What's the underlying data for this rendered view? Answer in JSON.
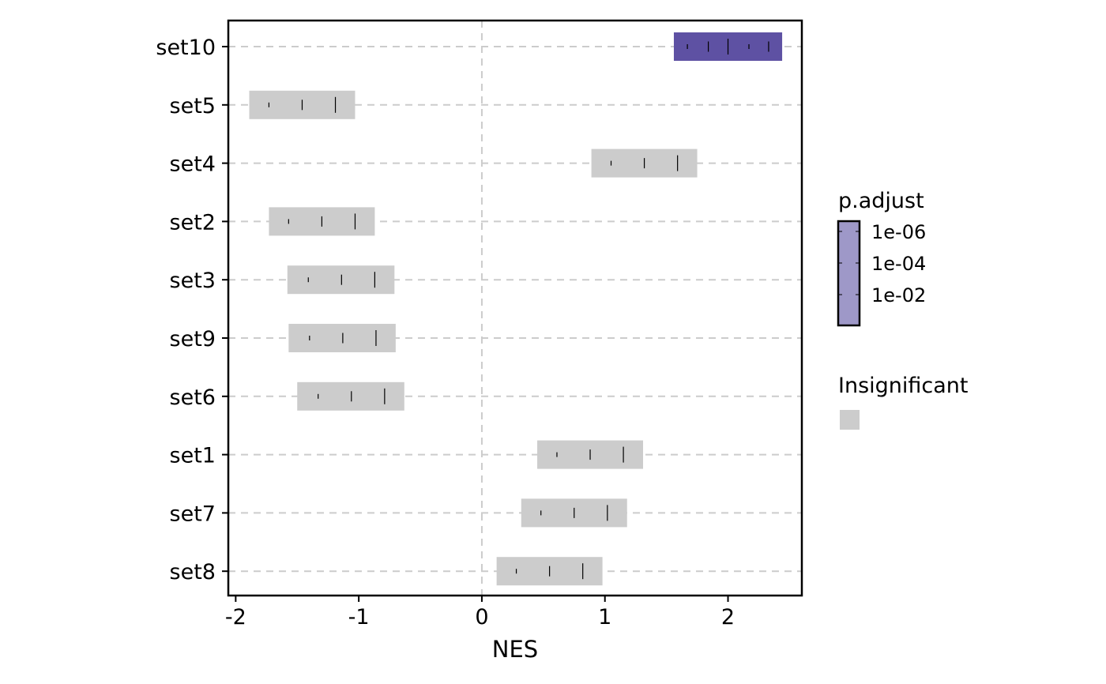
{
  "chart_data": {
    "type": "bar",
    "subtype": "barcode-range",
    "xlabel": "NES",
    "ylabel": "",
    "xlim": [
      -2.06,
      2.6
    ],
    "x_ticks": [
      -2,
      -1,
      0,
      1,
      2
    ],
    "x_tick_labels": [
      "-2",
      "-1",
      "0",
      "1",
      "2"
    ],
    "grid": "dashed horizontal per set, dashed vertical at 0",
    "categories": [
      "set10",
      "set5",
      "set4",
      "set2",
      "set3",
      "set9",
      "set6",
      "set1",
      "set7",
      "set8"
    ],
    "sets": [
      {
        "name": "set10",
        "range": [
          1.56,
          2.44
        ],
        "marks": [
          1.67,
          1.84,
          2.0,
          2.17,
          2.33
        ],
        "significant": true
      },
      {
        "name": "set5",
        "range": [
          -1.89,
          -1.03
        ],
        "marks": [
          -1.73,
          -1.46,
          -1.19
        ],
        "significant": false
      },
      {
        "name": "set4",
        "range": [
          0.89,
          1.75
        ],
        "marks": [
          1.05,
          1.32,
          1.59
        ],
        "significant": false
      },
      {
        "name": "set2",
        "range": [
          -1.73,
          -0.87
        ],
        "marks": [
          -1.57,
          -1.3,
          -1.03
        ],
        "significant": false
      },
      {
        "name": "set3",
        "range": [
          -1.58,
          -0.71
        ],
        "marks": [
          -1.41,
          -1.14,
          -0.87
        ],
        "significant": false
      },
      {
        "name": "set9",
        "range": [
          -1.57,
          -0.7
        ],
        "marks": [
          -1.4,
          -1.13,
          -0.86
        ],
        "significant": false
      },
      {
        "name": "set6",
        "range": [
          -1.5,
          -0.63
        ],
        "marks": [
          -1.33,
          -1.06,
          -0.79
        ],
        "significant": false
      },
      {
        "name": "set1",
        "range": [
          0.45,
          1.31
        ],
        "marks": [
          0.61,
          0.88,
          1.15
        ],
        "significant": false
      },
      {
        "name": "set7",
        "range": [
          0.32,
          1.18
        ],
        "marks": [
          0.48,
          0.75,
          1.02
        ],
        "significant": false
      },
      {
        "name": "set8",
        "range": [
          0.12,
          0.98
        ],
        "marks": [
          0.28,
          0.55,
          0.82
        ],
        "significant": false
      }
    ],
    "legend": {
      "placement": "right",
      "gradient_title": "p.adjust",
      "gradient_labels": [
        "1e-06",
        "1e-04",
        "1e-02"
      ],
      "gradient_color": "#9e98c8",
      "categorical_title": "Insignificant",
      "categorical_color": "#cccccc"
    },
    "colors": {
      "significant_bar": "#5e51a3",
      "insignificant_bar": "#cccccc",
      "grid": "#cccccc",
      "mark": "#000000"
    }
  }
}
